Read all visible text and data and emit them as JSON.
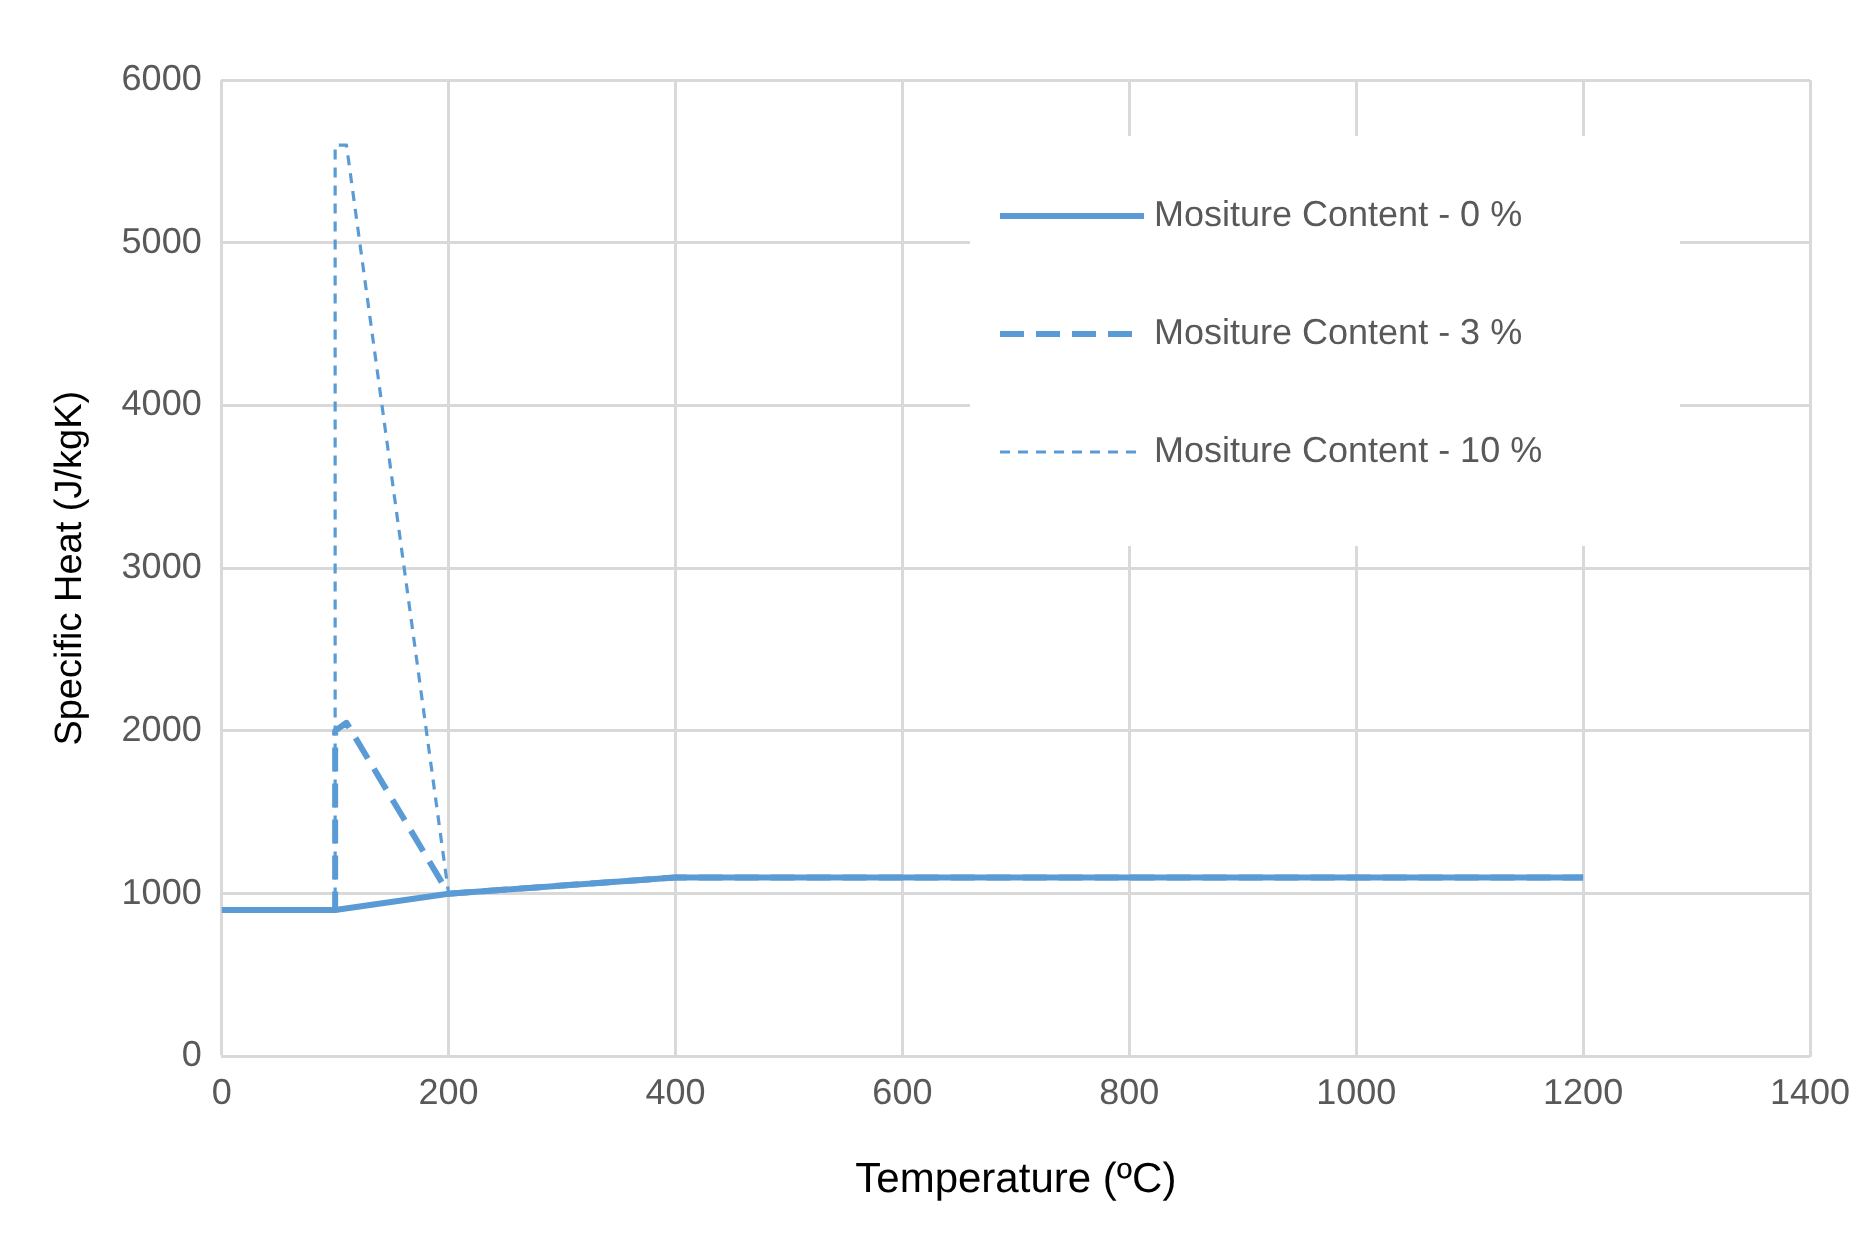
{
  "chart_data": {
    "type": "line",
    "xlabel": "Temperature (ºC)",
    "ylabel": "Specific Heat (J/kgK)",
    "xlim": [
      0,
      1400
    ],
    "xticks": [
      0,
      200,
      400,
      600,
      800,
      1000,
      1200,
      1400
    ],
    "ylim": [
      0,
      6000
    ],
    "yticks": [
      0,
      1000,
      2000,
      3000,
      4000,
      5000,
      6000
    ],
    "grid": true,
    "legend": "top right",
    "marker": "none",
    "series": [
      {
        "name": "Mositure Content - 0 %",
        "color": "#5b9bd5",
        "line_style": "solid",
        "x": [
          0,
          100,
          200,
          400,
          1200
        ],
        "values": [
          900,
          900,
          1000,
          1100,
          1100
        ]
      },
      {
        "name": "Mositure Content - 3 %",
        "color": "#5b9bd5",
        "line_style": "dashed",
        "x": [
          0,
          100,
          100,
          110,
          200,
          400,
          1200
        ],
        "values": [
          900,
          900,
          2000,
          2050,
          1000,
          1100,
          1100
        ]
      },
      {
        "name": "Mositure Content - 10 %",
        "color": "#5b9bd5",
        "line_style": "dotted",
        "x": [
          0,
          100,
          100,
          110,
          200,
          400,
          1200
        ],
        "values": [
          900,
          900,
          5600,
          5600,
          1000,
          1100,
          1100
        ]
      }
    ]
  }
}
